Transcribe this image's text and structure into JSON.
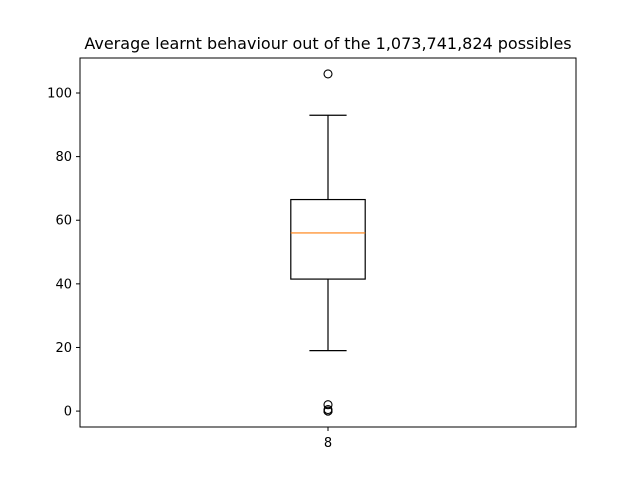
{
  "chart_data": {
    "type": "box",
    "title": "Average learnt behaviour out of the 1,073,741,824 possibles",
    "xlabel": "",
    "ylabel": "",
    "categories": [
      "8"
    ],
    "ylim": [
      -5,
      111
    ],
    "yticks": [
      0,
      20,
      40,
      60,
      80,
      100
    ],
    "grid": false,
    "boxes": [
      {
        "label": "8",
        "whisker_low": 19,
        "q1": 41.5,
        "median": 56,
        "q3": 66.5,
        "whisker_high": 93,
        "outliers": [
          106,
          2,
          0.5,
          0,
          0
        ]
      }
    ],
    "colors": {
      "box": "#000000",
      "median": "#ff7f0e",
      "outlier": "#000000"
    }
  }
}
